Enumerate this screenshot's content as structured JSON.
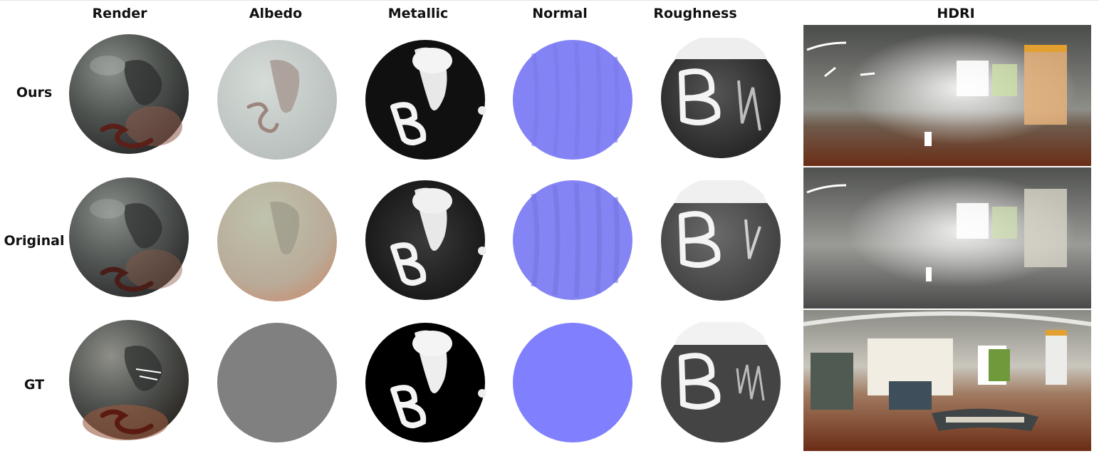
{
  "columns": {
    "render": "Render",
    "albedo": "Albedo",
    "metallic": "Metallic",
    "normal": "Normal",
    "roughness": "Roughness",
    "hdri": "HDRI"
  },
  "rows": {
    "ours": "Ours",
    "original": "Original",
    "gt": "GT"
  },
  "colors": {
    "normal_blue": "#8080ff",
    "albedo_gt_gray": "#808080",
    "floor_brown": "#7a3a1e"
  },
  "sphere_glyph": "B"
}
